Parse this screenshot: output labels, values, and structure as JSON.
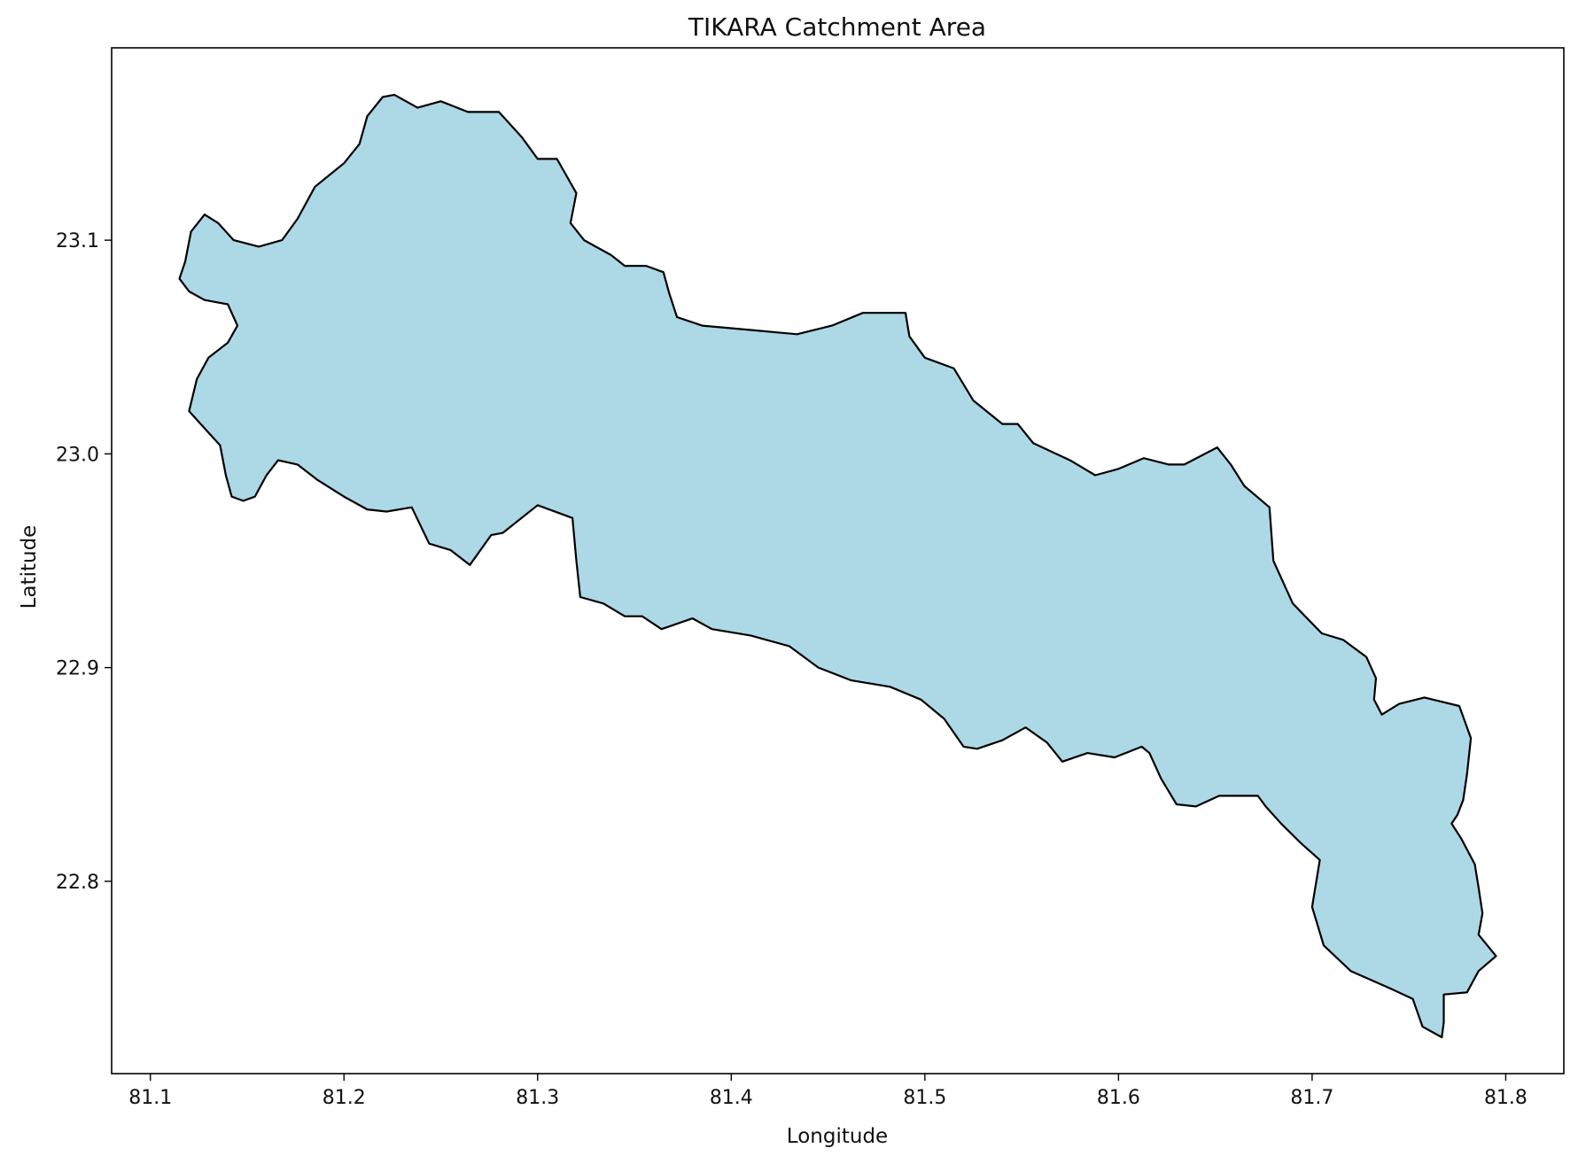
{
  "chart_data": {
    "type": "map",
    "title": "TIKARA Catchment Area",
    "xlabel": "Longitude",
    "ylabel": "Latitude",
    "xlim": [
      81.08,
      81.83
    ],
    "ylim": [
      22.71,
      23.19
    ],
    "xticks": [
      81.1,
      81.2,
      81.3,
      81.4,
      81.5,
      81.6,
      81.7,
      81.8
    ],
    "xtick_labels": [
      "81.1",
      "81.2",
      "81.3",
      "81.4",
      "81.5",
      "81.6",
      "81.7",
      "81.8"
    ],
    "yticks": [
      22.8,
      22.9,
      23.0,
      23.1
    ],
    "ytick_labels": [
      "22.8",
      "22.9",
      "23.0",
      "23.1"
    ],
    "grid": false,
    "colors": {
      "fill": "#add8e6",
      "edge": "#000000"
    },
    "boundary": [
      [
        81.115,
        23.082
      ],
      [
        81.118,
        23.09
      ],
      [
        81.121,
        23.104
      ],
      [
        81.128,
        23.112
      ],
      [
        81.135,
        23.108
      ],
      [
        81.143,
        23.1
      ],
      [
        81.156,
        23.097
      ],
      [
        81.168,
        23.1
      ],
      [
        81.176,
        23.11
      ],
      [
        81.185,
        23.125
      ],
      [
        81.2,
        23.136
      ],
      [
        81.208,
        23.145
      ],
      [
        81.212,
        23.158
      ],
      [
        81.22,
        23.167
      ],
      [
        81.226,
        23.168
      ],
      [
        81.238,
        23.162
      ],
      [
        81.25,
        23.165
      ],
      [
        81.264,
        23.16
      ],
      [
        81.28,
        23.16
      ],
      [
        81.292,
        23.148
      ],
      [
        81.3,
        23.138
      ],
      [
        81.31,
        23.138
      ],
      [
        81.315,
        23.13
      ],
      [
        81.32,
        23.122
      ],
      [
        81.317,
        23.108
      ],
      [
        81.324,
        23.1
      ],
      [
        81.338,
        23.093
      ],
      [
        81.345,
        23.088
      ],
      [
        81.356,
        23.088
      ],
      [
        81.365,
        23.085
      ],
      [
        81.368,
        23.075
      ],
      [
        81.372,
        23.064
      ],
      [
        81.385,
        23.06
      ],
      [
        81.41,
        23.058
      ],
      [
        81.434,
        23.056
      ],
      [
        81.452,
        23.06
      ],
      [
        81.468,
        23.066
      ],
      [
        81.49,
        23.066
      ],
      [
        81.492,
        23.055
      ],
      [
        81.5,
        23.045
      ],
      [
        81.515,
        23.04
      ],
      [
        81.525,
        23.025
      ],
      [
        81.54,
        23.014
      ],
      [
        81.548,
        23.014
      ],
      [
        81.556,
        23.005
      ],
      [
        81.575,
        22.997
      ],
      [
        81.588,
        22.99
      ],
      [
        81.6,
        22.993
      ],
      [
        81.613,
        22.998
      ],
      [
        81.626,
        22.995
      ],
      [
        81.634,
        22.995
      ],
      [
        81.651,
        23.003
      ],
      [
        81.658,
        22.995
      ],
      [
        81.665,
        22.985
      ],
      [
        81.678,
        22.975
      ],
      [
        81.68,
        22.95
      ],
      [
        81.685,
        22.94
      ],
      [
        81.69,
        22.93
      ],
      [
        81.705,
        22.916
      ],
      [
        81.716,
        22.913
      ],
      [
        81.728,
        22.905
      ],
      [
        81.733,
        22.895
      ],
      [
        81.732,
        22.885
      ],
      [
        81.736,
        22.878
      ],
      [
        81.745,
        22.883
      ],
      [
        81.758,
        22.886
      ],
      [
        81.776,
        22.882
      ],
      [
        81.782,
        22.867
      ],
      [
        81.78,
        22.85
      ],
      [
        81.778,
        22.838
      ],
      [
        81.775,
        22.831
      ],
      [
        81.772,
        22.827
      ],
      [
        81.777,
        22.82
      ],
      [
        81.784,
        22.808
      ],
      [
        81.786,
        22.797
      ],
      [
        81.788,
        22.785
      ],
      [
        81.786,
        22.775
      ],
      [
        81.795,
        22.765
      ],
      [
        81.786,
        22.758
      ],
      [
        81.78,
        22.748
      ],
      [
        81.768,
        22.747
      ],
      [
        81.768,
        22.734
      ],
      [
        81.767,
        22.727
      ],
      [
        81.757,
        22.732
      ],
      [
        81.752,
        22.745
      ],
      [
        81.74,
        22.75
      ],
      [
        81.72,
        22.758
      ],
      [
        81.706,
        22.77
      ],
      [
        81.7,
        22.788
      ],
      [
        81.704,
        22.81
      ],
      [
        81.694,
        22.818
      ],
      [
        81.684,
        22.827
      ],
      [
        81.676,
        22.835
      ],
      [
        81.672,
        22.84
      ],
      [
        81.652,
        22.84
      ],
      [
        81.64,
        22.835
      ],
      [
        81.63,
        22.836
      ],
      [
        81.622,
        22.848
      ],
      [
        81.616,
        22.86
      ],
      [
        81.612,
        22.863
      ],
      [
        81.598,
        22.858
      ],
      [
        81.584,
        22.86
      ],
      [
        81.571,
        22.856
      ],
      [
        81.563,
        22.865
      ],
      [
        81.552,
        22.872
      ],
      [
        81.54,
        22.866
      ],
      [
        81.527,
        22.862
      ],
      [
        81.52,
        22.863
      ],
      [
        81.51,
        22.876
      ],
      [
        81.498,
        22.885
      ],
      [
        81.482,
        22.891
      ],
      [
        81.462,
        22.894
      ],
      [
        81.445,
        22.9
      ],
      [
        81.43,
        22.91
      ],
      [
        81.41,
        22.915
      ],
      [
        81.39,
        22.918
      ],
      [
        81.38,
        22.923
      ],
      [
        81.364,
        22.918
      ],
      [
        81.354,
        22.924
      ],
      [
        81.345,
        22.924
      ],
      [
        81.334,
        22.93
      ],
      [
        81.322,
        22.933
      ],
      [
        81.32,
        22.95
      ],
      [
        81.318,
        22.97
      ],
      [
        81.3,
        22.976
      ],
      [
        81.282,
        22.963
      ],
      [
        81.276,
        22.962
      ],
      [
        81.265,
        22.948
      ],
      [
        81.255,
        22.955
      ],
      [
        81.244,
        22.958
      ],
      [
        81.235,
        22.975
      ],
      [
        81.222,
        22.973
      ],
      [
        81.212,
        22.974
      ],
      [
        81.2,
        22.98
      ],
      [
        81.186,
        22.988
      ],
      [
        81.176,
        22.995
      ],
      [
        81.166,
        22.997
      ],
      [
        81.16,
        22.99
      ],
      [
        81.154,
        22.98
      ],
      [
        81.148,
        22.978
      ],
      [
        81.142,
        22.98
      ],
      [
        81.139,
        22.99
      ],
      [
        81.136,
        23.004
      ],
      [
        81.125,
        23.015
      ],
      [
        81.12,
        23.02
      ],
      [
        81.124,
        23.035
      ],
      [
        81.13,
        23.045
      ],
      [
        81.14,
        23.052
      ],
      [
        81.145,
        23.06
      ],
      [
        81.14,
        23.07
      ],
      [
        81.128,
        23.072
      ],
      [
        81.12,
        23.076
      ],
      [
        81.115,
        23.082
      ]
    ]
  }
}
